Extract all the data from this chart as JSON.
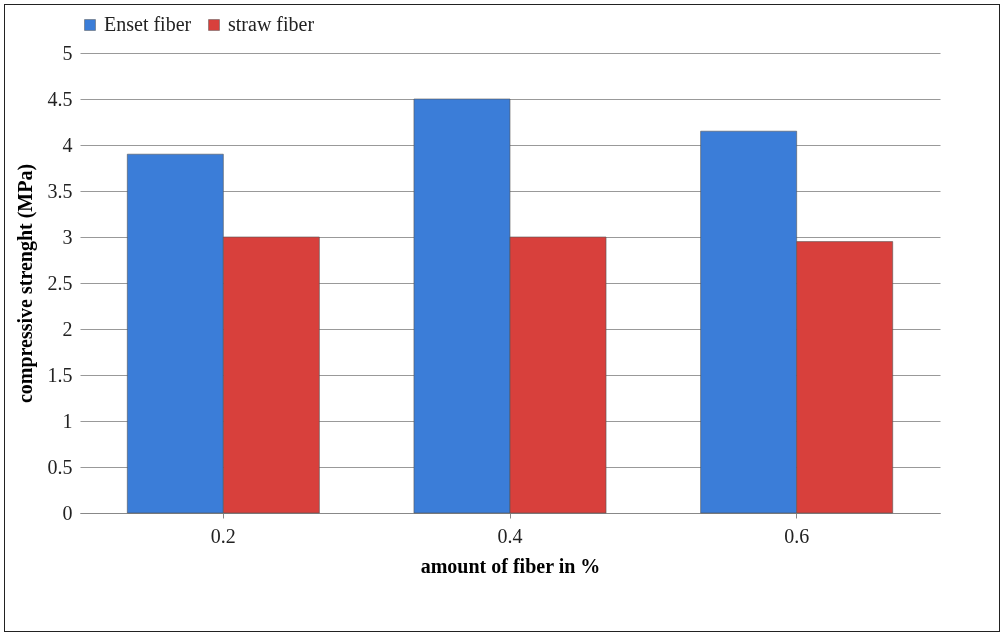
{
  "chart_data": {
    "type": "bar",
    "xlabel": "amount of fiber in %",
    "ylabel": "compressive strenght (MPa)",
    "categories": [
      "0.2",
      "0.4",
      "0.6"
    ],
    "series": [
      {
        "name": "Enset fiber",
        "color": "#3b7dd8",
        "values": [
          3.9,
          4.5,
          4.15
        ]
      },
      {
        "name": "straw fiber",
        "color": "#d8403c",
        "values": [
          3.0,
          3.0,
          2.95
        ]
      }
    ],
    "ylim": [
      0,
      5
    ],
    "yticks": [
      0,
      0.5,
      1,
      1.5,
      2,
      2.5,
      3,
      3.5,
      4,
      4.5,
      5
    ],
    "grid": "y",
    "legend": "top"
  }
}
